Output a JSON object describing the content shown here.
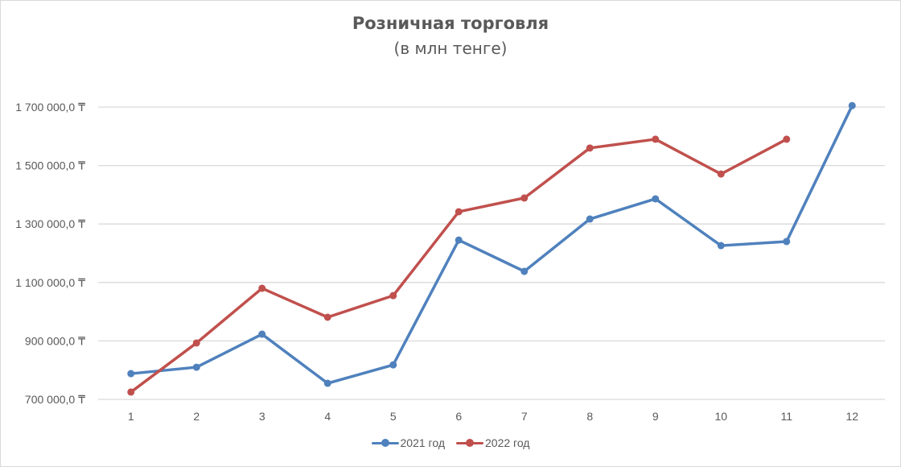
{
  "chart": {
    "title": "Розничная торговля",
    "subtitle": "(в млн тенге)"
  },
  "legend": [
    {
      "label": "2021 год",
      "color": "#4f81bd"
    },
    {
      "label": "2022 год",
      "color": "#c0504d"
    }
  ],
  "chart_data": {
    "type": "line",
    "title": "Розничная торговля",
    "subtitle": "(в млн тенге)",
    "xlabel": "",
    "ylabel": "",
    "categories": [
      "1",
      "2",
      "3",
      "4",
      "5",
      "6",
      "7",
      "8",
      "9",
      "10",
      "11",
      "12"
    ],
    "y_ticks": [
      "700 000,0 ₸",
      "900 000,0 ₸",
      "1 100 000,0 ₸",
      "1 300 000,0 ₸",
      "1 500 000,0 ₸",
      "1 700 000,0 ₸"
    ],
    "ylim": [
      700000,
      1700000
    ],
    "grid": true,
    "legend_position": "bottom",
    "series": [
      {
        "name": "2021 год",
        "color": "#4f81bd",
        "values": [
          788000,
          810000,
          923000,
          755000,
          818000,
          1245000,
          1138000,
          1317000,
          1386000,
          1226000,
          1240000,
          1705000
        ]
      },
      {
        "name": "2022 год",
        "color": "#c0504d",
        "values": [
          725000,
          893000,
          1080000,
          981000,
          1055000,
          1342000,
          1389000,
          1560000,
          1590000,
          1471000,
          1590000,
          null
        ]
      }
    ]
  }
}
